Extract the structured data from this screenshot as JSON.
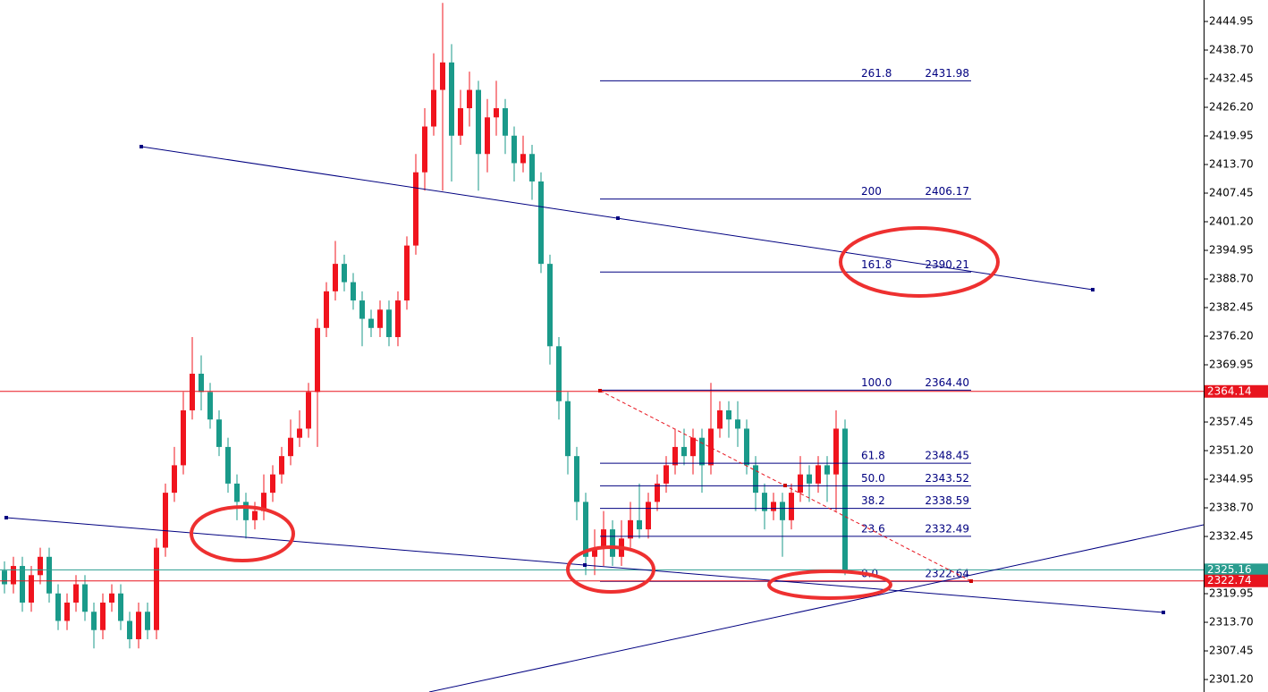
{
  "chart_data": {
    "type": "candlestick",
    "up_color": "#f0141e",
    "down_color": "#1a9a8a",
    "ylim": [
      2298.47,
      2449.64
    ],
    "yticks": [
      2444.95,
      {
        "value": 2438.7,
        "label": "2438.70"
      },
      2432.45,
      {
        "value": 2426.2,
        "label": "2426.20"
      },
      2419.95,
      {
        "value": 2413.7,
        "label": "2413.70"
      },
      2407.45,
      {
        "value": 2401.2,
        "label": "2401.20"
      },
      2394.95,
      {
        "value": 2388.7,
        "label": "2388.70"
      },
      2382.45,
      {
        "value": 2376.2,
        "label": "2376.20"
      },
      2369.95,
      2357.45,
      {
        "value": 2351.2,
        "label": "2351.20"
      },
      2344.95,
      {
        "value": 2338.7,
        "label": "2338.70"
      },
      2332.45,
      2319.95,
      {
        "value": 2313.7,
        "label": "2313.70"
      },
      2307.45,
      {
        "value": 2301.2,
        "label": "2301.20"
      }
    ],
    "open": [
      2325,
      2322,
      2326,
      2318,
      2324,
      2328,
      2320,
      2314,
      2318,
      2322,
      2316,
      2312,
      2318,
      2320,
      2314,
      2310,
      2316,
      2312,
      2330,
      2342,
      2348,
      2360,
      2368,
      2364,
      2358,
      2352,
      2344,
      2340,
      2336,
      2338,
      2342,
      2346,
      2350,
      2354,
      2356,
      2364,
      2378,
      2386,
      2392,
      2388,
      2384,
      2380,
      2378,
      2382,
      2376,
      2384,
      2396,
      2412,
      2422,
      2430,
      2436,
      2420,
      2426,
      2430,
      2416,
      2424,
      2426,
      2420,
      2414,
      2416,
      2410,
      2392,
      2374,
      2362,
      2350,
      2340,
      2328,
      2330,
      2334,
      2328,
      2332,
      2336,
      2334,
      2340,
      2344,
      2348,
      2352,
      2350,
      2354,
      2348,
      2356,
      2360,
      2358,
      2356,
      2348,
      2342,
      2338,
      2340,
      2336,
      2342,
      2346,
      2344,
      2348,
      2346,
      2356
    ],
    "high": [
      2327,
      2328,
      2328,
      2326,
      2330,
      2330,
      2322,
      2320,
      2324,
      2324,
      2318,
      2320,
      2322,
      2322,
      2316,
      2318,
      2318,
      2332,
      2344,
      2352,
      2364,
      2376,
      2372,
      2366,
      2360,
      2354,
      2346,
      2342,
      2340,
      2346,
      2348,
      2352,
      2358,
      2360,
      2366,
      2380,
      2388,
      2397,
      2394,
      2390,
      2386,
      2382,
      2384,
      2384,
      2386,
      2398,
      2416,
      2426,
      2438,
      2449,
      2440,
      2430,
      2434,
      2432,
      2428,
      2432,
      2428,
      2422,
      2420,
      2418,
      2412,
      2394,
      2376,
      2364,
      2352,
      2342,
      2334,
      2338,
      2336,
      2336,
      2340,
      2344,
      2342,
      2346,
      2350,
      2356,
      2356,
      2356,
      2356,
      2366,
      2362,
      2362,
      2362,
      2358,
      2350,
      2344,
      2342,
      2342,
      2344,
      2350,
      2348,
      2350,
      2350,
      2360,
      2358
    ],
    "low": [
      2320,
      2320,
      2316,
      2316,
      2322,
      2318,
      2312,
      2312,
      2316,
      2314,
      2308,
      2310,
      2316,
      2312,
      2308,
      2308,
      2310,
      2310,
      2328,
      2340,
      2346,
      2358,
      2360,
      2356,
      2350,
      2342,
      2336,
      2332,
      2334,
      2336,
      2340,
      2344,
      2348,
      2352,
      2354,
      2352,
      2376,
      2384,
      2386,
      2382,
      2374,
      2376,
      2376,
      2374,
      2374,
      2382,
      2394,
      2408,
      2420,
      2408,
      2410,
      2418,
      2422,
      2408,
      2412,
      2420,
      2416,
      2410,
      2412,
      2406,
      2390,
      2370,
      2358,
      2346,
      2336,
      2324,
      2324,
      2326,
      2326,
      2326,
      2330,
      2332,
      2332,
      2338,
      2342,
      2346,
      2348,
      2346,
      2342,
      2346,
      2354,
      2354,
      2352,
      2346,
      2338,
      2334,
      2336,
      2328,
      2334,
      2340,
      2340,
      2342,
      2340,
      2338,
      2324
    ],
    "close": [
      2322,
      2326,
      2318,
      2324,
      2328,
      2320,
      2314,
      2318,
      2322,
      2316,
      2312,
      2318,
      2320,
      2314,
      2310,
      2316,
      2312,
      2330,
      2342,
      2348,
      2360,
      2368,
      2364,
      2358,
      2352,
      2344,
      2340,
      2336,
      2338,
      2342,
      2346,
      2350,
      2354,
      2356,
      2364,
      2378,
      2386,
      2392,
      2388,
      2384,
      2380,
      2378,
      2382,
      2376,
      2384,
      2396,
      2412,
      2422,
      2430,
      2436,
      2420,
      2426,
      2430,
      2416,
      2424,
      2426,
      2420,
      2414,
      2416,
      2410,
      2392,
      2374,
      2362,
      2350,
      2340,
      2328,
      2330,
      2334,
      2328,
      2332,
      2336,
      2334,
      2340,
      2344,
      2348,
      2352,
      2350,
      2354,
      2348,
      2356,
      2360,
      2358,
      2356,
      2348,
      2342,
      2338,
      2340,
      2336,
      2342,
      2346,
      2344,
      2348,
      2346,
      2356,
      2325.16
    ],
    "fibonacci": {
      "color": "#000080",
      "ratios": [
        "261.8",
        "200",
        "161.8",
        "100.0",
        "61.8",
        "50.0",
        "38.2",
        "23.6",
        "0.0"
      ],
      "prices": [
        2431.98,
        2406.17,
        2390.21,
        2364.4,
        2348.45,
        2343.52,
        2338.59,
        2332.49,
        2322.64
      ],
      "price_labels": [
        "2431.98",
        "2406.17",
        "2390.21",
        "2364.40",
        "2348.45",
        "2343.52",
        "2338.59",
        "2332.49",
        "2322.64"
      ]
    },
    "price_lines": [
      {
        "value": 2364.14,
        "color": "#e8141e"
      },
      {
        "value": 2325.16,
        "color": "#2a9d8f"
      },
      {
        "value": 2322.74,
        "color": "#e8141e"
      }
    ]
  }
}
